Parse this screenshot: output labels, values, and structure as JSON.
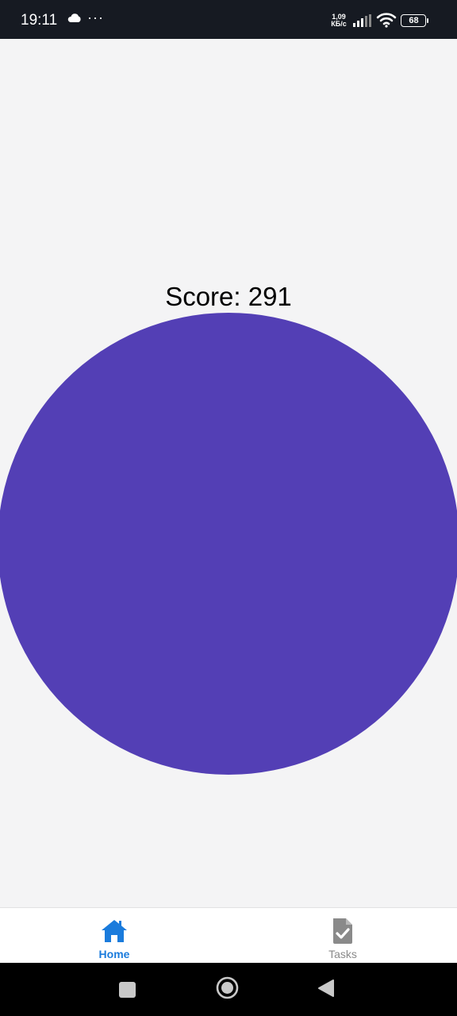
{
  "status_bar": {
    "time": "19:11",
    "net_speed_value": "1,09",
    "net_speed_unit": "КБ/с",
    "battery_level": "68"
  },
  "main": {
    "score_text": "Score: 291",
    "circle_color": "#533fb5"
  },
  "tab_bar": {
    "tabs": [
      {
        "label": "Home",
        "icon": "home-icon",
        "active": true
      },
      {
        "label": "Tasks",
        "icon": "task-document-icon",
        "active": false
      }
    ],
    "active_color": "#1a7bdc",
    "inactive_color": "#8a8a8a"
  },
  "nav_bar": {
    "buttons": [
      "recents-icon",
      "home-circle-icon",
      "back-icon"
    ]
  }
}
